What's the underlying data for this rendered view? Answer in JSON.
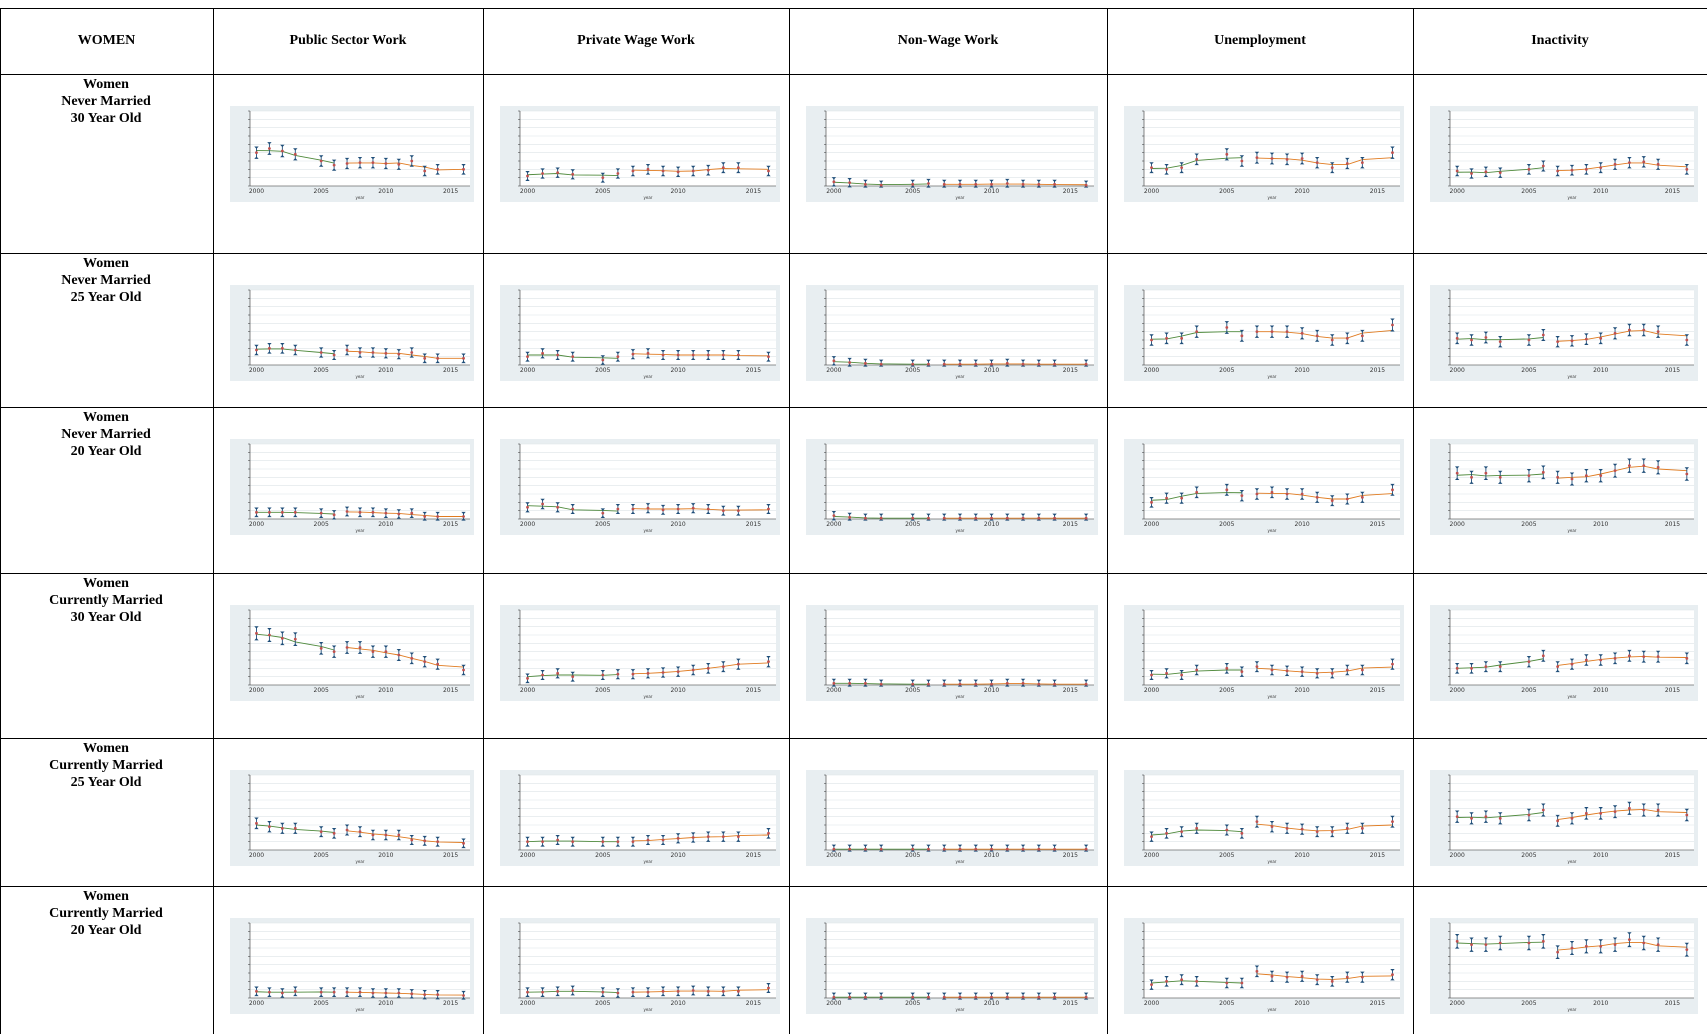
{
  "header": {
    "corner": "WOMEN",
    "columns": [
      "Public Sector Work",
      "Private Wage Work",
      "Non-Wage Work",
      "Unemployment",
      "Inactivity"
    ]
  },
  "rows": [
    {
      "line1": "Women",
      "line2": "Never Married",
      "line3": "30 Year Old"
    },
    {
      "line1": "Women",
      "line2": "Never Married",
      "line3": "25 Year Old"
    },
    {
      "line1": "Women",
      "line2": "Never Married",
      "line3": "20 Year Old"
    },
    {
      "line1": "Women",
      "line2": "Currently Married",
      "line3": "30 Year Old"
    },
    {
      "line1": "Women",
      "line2": "Currently Married",
      "line3": "25 Year Old"
    },
    {
      "line1": "Women",
      "line2": "Currently Married",
      "line3": "20 Year Old"
    }
  ],
  "colors": {
    "panel_bg": "#e8eef1",
    "ci_bars": "#1f4e79",
    "point_marker": "#c0504d",
    "fit_early": "#4f8a3c",
    "fit_late": "#e07b20",
    "grid": "#ffffff"
  },
  "chart_data": {
    "type": "scatter",
    "description_note": "",
    "x": [
      2000,
      2001,
      2002,
      2003,
      2005,
      2006,
      2007,
      2008,
      2009,
      2010,
      2011,
      2012,
      2013,
      2014,
      2016
    ],
    "xticks": [
      2000,
      2005,
      2010,
      2015
    ],
    "xlabel": "year",
    "ylim": [
      0,
      0.9
    ],
    "panels": [
      {
        "row": 0,
        "col": 0,
        "values": [
          0.4,
          0.45,
          0.42,
          0.38,
          0.3,
          0.25,
          0.27,
          0.28,
          0.28,
          0.27,
          0.26,
          0.3,
          0.18,
          0.2,
          0.2
        ]
      },
      {
        "row": 0,
        "col": 1,
        "values": [
          0.12,
          0.15,
          0.16,
          0.14,
          0.1,
          0.15,
          0.18,
          0.2,
          0.18,
          0.17,
          0.18,
          0.19,
          0.22,
          0.22,
          0.18
        ]
      },
      {
        "row": 0,
        "col": 2,
        "values": [
          0.05,
          0.04,
          0.02,
          0.01,
          0.02,
          0.03,
          0.02,
          0.02,
          0.02,
          0.02,
          0.03,
          0.02,
          0.02,
          0.02,
          0.01
        ]
      },
      {
        "row": 0,
        "col": 3,
        "values": [
          0.22,
          0.2,
          0.22,
          0.32,
          0.38,
          0.3,
          0.34,
          0.33,
          0.32,
          0.33,
          0.28,
          0.22,
          0.27,
          0.28,
          0.4
        ]
      },
      {
        "row": 0,
        "col": 4,
        "values": [
          0.18,
          0.15,
          0.17,
          0.16,
          0.2,
          0.24,
          0.18,
          0.19,
          0.2,
          0.22,
          0.26,
          0.28,
          0.29,
          0.26,
          0.2
        ]
      },
      {
        "row": 1,
        "col": 0,
        "values": [
          0.18,
          0.2,
          0.2,
          0.18,
          0.15,
          0.12,
          0.18,
          0.15,
          0.15,
          0.14,
          0.13,
          0.15,
          0.08,
          0.08,
          0.08
        ]
      },
      {
        "row": 1,
        "col": 1,
        "values": [
          0.1,
          0.14,
          0.12,
          0.1,
          0.06,
          0.1,
          0.13,
          0.14,
          0.12,
          0.12,
          0.12,
          0.12,
          0.12,
          0.12,
          0.1
        ]
      },
      {
        "row": 1,
        "col": 2,
        "values": [
          0.05,
          0.03,
          0.02,
          0.01,
          0.01,
          0.01,
          0.01,
          0.01,
          0.01,
          0.01,
          0.02,
          0.01,
          0.01,
          0.01,
          0.01
        ]
      },
      {
        "row": 1,
        "col": 3,
        "values": [
          0.3,
          0.32,
          0.32,
          0.4,
          0.45,
          0.35,
          0.4,
          0.4,
          0.4,
          0.38,
          0.35,
          0.3,
          0.32,
          0.35,
          0.48
        ]
      },
      {
        "row": 1,
        "col": 4,
        "values": [
          0.32,
          0.3,
          0.33,
          0.28,
          0.3,
          0.36,
          0.28,
          0.29,
          0.31,
          0.32,
          0.38,
          0.42,
          0.42,
          0.4,
          0.3
        ]
      },
      {
        "row": 2,
        "col": 0,
        "values": [
          0.08,
          0.08,
          0.08,
          0.08,
          0.07,
          0.05,
          0.09,
          0.08,
          0.08,
          0.07,
          0.06,
          0.07,
          0.03,
          0.03,
          0.03
        ]
      },
      {
        "row": 2,
        "col": 1,
        "values": [
          0.14,
          0.18,
          0.14,
          0.12,
          0.07,
          0.12,
          0.12,
          0.13,
          0.11,
          0.12,
          0.13,
          0.12,
          0.1,
          0.1,
          0.12
        ]
      },
      {
        "row": 2,
        "col": 2,
        "values": [
          0.04,
          0.02,
          0.01,
          0.01,
          0.01,
          0.01,
          0.01,
          0.01,
          0.01,
          0.01,
          0.01,
          0.01,
          0.01,
          0.01,
          0.01
        ]
      },
      {
        "row": 2,
        "col": 3,
        "values": [
          0.2,
          0.25,
          0.25,
          0.32,
          0.35,
          0.28,
          0.3,
          0.32,
          0.3,
          0.3,
          0.26,
          0.22,
          0.24,
          0.26,
          0.35
        ]
      },
      {
        "row": 2,
        "col": 4,
        "values": [
          0.55,
          0.5,
          0.55,
          0.5,
          0.52,
          0.56,
          0.5,
          0.48,
          0.52,
          0.52,
          0.58,
          0.64,
          0.64,
          0.62,
          0.54
        ]
      },
      {
        "row": 3,
        "col": 0,
        "values": [
          0.62,
          0.6,
          0.56,
          0.55,
          0.44,
          0.4,
          0.45,
          0.45,
          0.4,
          0.4,
          0.36,
          0.32,
          0.28,
          0.25,
          0.18
        ]
      },
      {
        "row": 3,
        "col": 1,
        "values": [
          0.08,
          0.12,
          0.14,
          0.1,
          0.12,
          0.13,
          0.13,
          0.14,
          0.15,
          0.16,
          0.18,
          0.2,
          0.22,
          0.25,
          0.28
        ]
      },
      {
        "row": 3,
        "col": 2,
        "values": [
          0.02,
          0.02,
          0.02,
          0.01,
          0.01,
          0.01,
          0.01,
          0.01,
          0.01,
          0.01,
          0.02,
          0.02,
          0.01,
          0.01,
          0.01
        ]
      },
      {
        "row": 3,
        "col": 3,
        "values": [
          0.12,
          0.14,
          0.12,
          0.18,
          0.2,
          0.16,
          0.22,
          0.18,
          0.17,
          0.16,
          0.14,
          0.14,
          0.18,
          0.18,
          0.25
        ]
      },
      {
        "row": 3,
        "col": 4,
        "values": [
          0.2,
          0.2,
          0.22,
          0.22,
          0.28,
          0.35,
          0.22,
          0.25,
          0.3,
          0.3,
          0.32,
          0.35,
          0.34,
          0.34,
          0.32
        ]
      },
      {
        "row": 4,
        "col": 0,
        "values": [
          0.32,
          0.28,
          0.26,
          0.26,
          0.22,
          0.2,
          0.24,
          0.22,
          0.18,
          0.18,
          0.18,
          0.12,
          0.11,
          0.1,
          0.08
        ]
      },
      {
        "row": 4,
        "col": 1,
        "values": [
          0.1,
          0.1,
          0.12,
          0.1,
          0.1,
          0.1,
          0.1,
          0.12,
          0.12,
          0.14,
          0.15,
          0.16,
          0.16,
          0.16,
          0.2
        ]
      },
      {
        "row": 4,
        "col": 2,
        "values": [
          0.01,
          0.01,
          0.01,
          0.01,
          0.01,
          0.01,
          0.01,
          0.01,
          0.01,
          0.01,
          0.01,
          0.01,
          0.01,
          0.01,
          0.01
        ]
      },
      {
        "row": 4,
        "col": 3,
        "values": [
          0.16,
          0.2,
          0.22,
          0.26,
          0.24,
          0.2,
          0.34,
          0.28,
          0.26,
          0.25,
          0.22,
          0.22,
          0.26,
          0.26,
          0.34
        ]
      },
      {
        "row": 4,
        "col": 4,
        "values": [
          0.4,
          0.38,
          0.4,
          0.38,
          0.42,
          0.48,
          0.35,
          0.38,
          0.44,
          0.44,
          0.46,
          0.5,
          0.48,
          0.48,
          0.42
        ]
      },
      {
        "row": 5,
        "col": 0,
        "values": [
          0.08,
          0.07,
          0.06,
          0.08,
          0.07,
          0.07,
          0.07,
          0.07,
          0.06,
          0.06,
          0.06,
          0.05,
          0.04,
          0.04,
          0.03
        ]
      },
      {
        "row": 5,
        "col": 1,
        "values": [
          0.07,
          0.07,
          0.08,
          0.09,
          0.07,
          0.06,
          0.07,
          0.07,
          0.08,
          0.08,
          0.09,
          0.08,
          0.08,
          0.08,
          0.12
        ]
      },
      {
        "row": 5,
        "col": 2,
        "values": [
          0.01,
          0.01,
          0.01,
          0.01,
          0.01,
          0.01,
          0.01,
          0.01,
          0.01,
          0.01,
          0.01,
          0.01,
          0.01,
          0.01,
          0.01
        ]
      },
      {
        "row": 5,
        "col": 3,
        "values": [
          0.16,
          0.2,
          0.22,
          0.2,
          0.18,
          0.18,
          0.32,
          0.26,
          0.25,
          0.26,
          0.22,
          0.2,
          0.25,
          0.25,
          0.28
        ]
      },
      {
        "row": 5,
        "col": 4,
        "values": [
          0.68,
          0.64,
          0.64,
          0.66,
          0.66,
          0.68,
          0.55,
          0.6,
          0.62,
          0.62,
          0.64,
          0.7,
          0.66,
          0.64,
          0.58
        ]
      }
    ]
  }
}
